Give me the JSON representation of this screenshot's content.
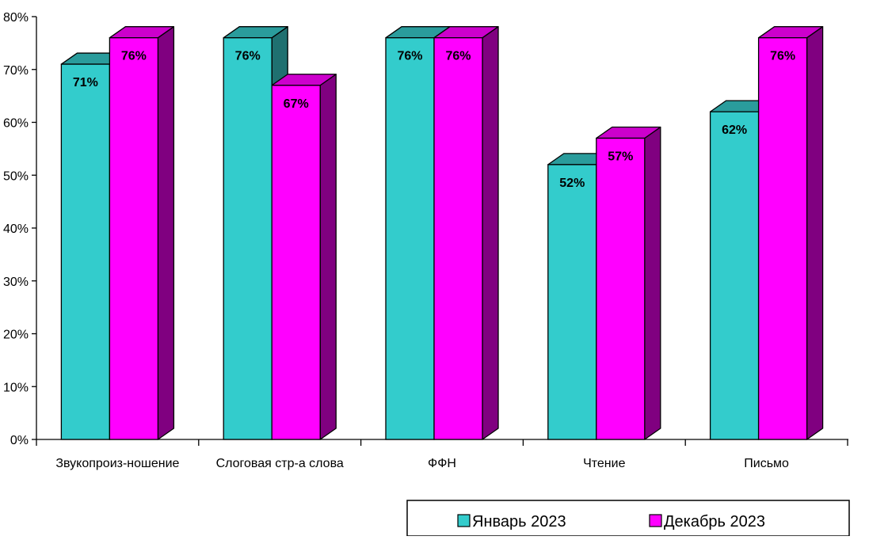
{
  "chart_data": {
    "type": "bar",
    "title": "",
    "xlabel": "",
    "ylabel": "",
    "ylim": [
      0,
      80
    ],
    "y_unit": "%",
    "y_ticks": [
      "0%",
      "10%",
      "20%",
      "30%",
      "40%",
      "50%",
      "60%",
      "70%",
      "80%"
    ],
    "categories": [
      "Звукопроиз-ношение",
      "Слоговая стр-а слова",
      "ФФН",
      "Чтение",
      "Письмо"
    ],
    "series": [
      {
        "name": "Январь 2023",
        "values": [
          71,
          76,
          76,
          52,
          62
        ],
        "labels": [
          "71%",
          "76%",
          "76%",
          "52%",
          "62%"
        ],
        "color": "#33CCCC",
        "top_color": "#2A9C9C",
        "side_color": "#1F7070"
      },
      {
        "name": "Декабрь 2023",
        "values": [
          76,
          67,
          76,
          57,
          76
        ],
        "labels": [
          "76%",
          "67%",
          "76%",
          "57%",
          "76%"
        ],
        "color": "#FF00FF",
        "top_color": "#CC00CC",
        "side_color": "#800080"
      }
    ],
    "grid": false,
    "style": "3d-clustered-column",
    "legend_position": "bottom-right"
  }
}
